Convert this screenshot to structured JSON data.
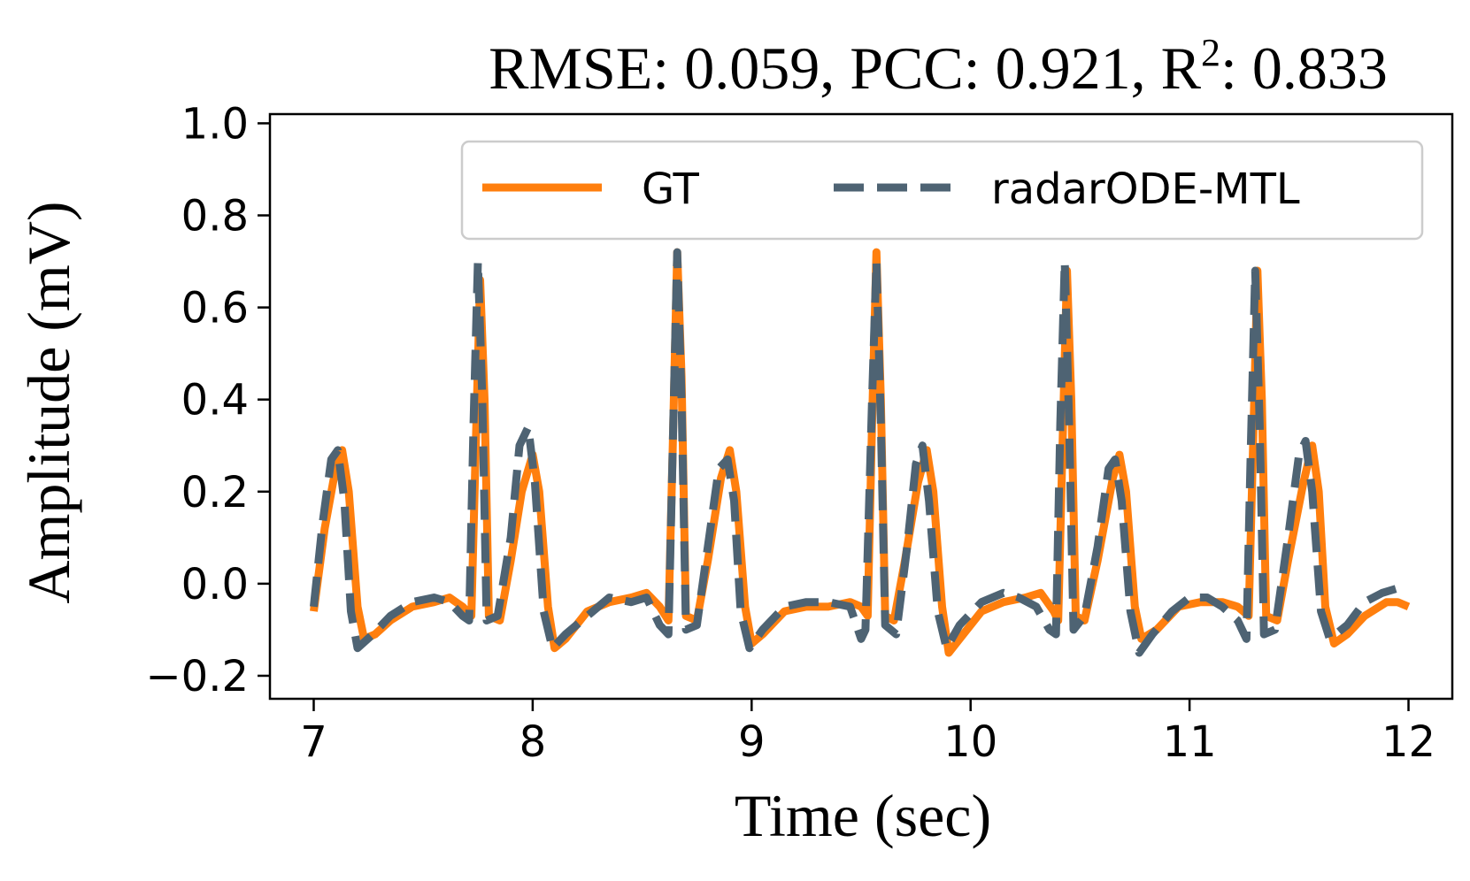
{
  "chart_data": {
    "type": "line",
    "title": "RMSE: 0.059, PCC: 0.921, R",
    "title_sup": "2",
    "title_tail": ": 0.833",
    "xlabel": "Time (sec)",
    "ylabel": "Amplitude (mV)",
    "xlim": [
      6.8,
      12.2
    ],
    "ylim": [
      -0.25,
      1.02
    ],
    "xticks": [
      7,
      8,
      9,
      10,
      11,
      12
    ],
    "xtick_labels": [
      "7",
      "8",
      "9",
      "10",
      "11",
      "12"
    ],
    "yticks": [
      -0.2,
      0.0,
      0.2,
      0.4,
      0.6,
      0.8,
      1.0
    ],
    "ytick_labels": [
      "−0.2",
      "0.0",
      "0.2",
      "0.4",
      "0.6",
      "0.8",
      "1.0"
    ],
    "grid": false,
    "legend": {
      "placement": "top-right",
      "columns": 2
    },
    "series": [
      {
        "name": "GT",
        "color": "#ff7f0e",
        "style": "solid",
        "points": [
          [
            7.0,
            -0.06
          ],
          [
            7.05,
            0.12
          ],
          [
            7.1,
            0.25
          ],
          [
            7.13,
            0.29
          ],
          [
            7.16,
            0.2
          ],
          [
            7.2,
            -0.05
          ],
          [
            7.23,
            -0.12
          ],
          [
            7.28,
            -0.11
          ],
          [
            7.35,
            -0.08
          ],
          [
            7.45,
            -0.05
          ],
          [
            7.55,
            -0.04
          ],
          [
            7.62,
            -0.03
          ],
          [
            7.68,
            -0.05
          ],
          [
            7.72,
            -0.07
          ],
          [
            7.74,
            0.3
          ],
          [
            7.76,
            0.66
          ],
          [
            7.78,
            0.4
          ],
          [
            7.8,
            -0.07
          ],
          [
            7.85,
            -0.08
          ],
          [
            7.9,
            0.05
          ],
          [
            7.95,
            0.2
          ],
          [
            8.0,
            0.28
          ],
          [
            8.03,
            0.2
          ],
          [
            8.07,
            -0.05
          ],
          [
            8.1,
            -0.14
          ],
          [
            8.15,
            -0.12
          ],
          [
            8.25,
            -0.06
          ],
          [
            8.35,
            -0.04
          ],
          [
            8.45,
            -0.03
          ],
          [
            8.52,
            -0.02
          ],
          [
            8.58,
            -0.05
          ],
          [
            8.62,
            -0.08
          ],
          [
            8.64,
            0.3
          ],
          [
            8.66,
            0.72
          ],
          [
            8.68,
            0.45
          ],
          [
            8.7,
            -0.07
          ],
          [
            8.75,
            -0.08
          ],
          [
            8.8,
            0.05
          ],
          [
            8.86,
            0.23
          ],
          [
            8.9,
            0.29
          ],
          [
            8.93,
            0.2
          ],
          [
            8.97,
            -0.05
          ],
          [
            9.0,
            -0.13
          ],
          [
            9.05,
            -0.11
          ],
          [
            9.15,
            -0.06
          ],
          [
            9.25,
            -0.05
          ],
          [
            9.35,
            -0.05
          ],
          [
            9.45,
            -0.04
          ],
          [
            9.5,
            -0.05
          ],
          [
            9.53,
            -0.07
          ],
          [
            9.55,
            0.35
          ],
          [
            9.57,
            0.72
          ],
          [
            9.59,
            0.4
          ],
          [
            9.61,
            -0.07
          ],
          [
            9.65,
            -0.08
          ],
          [
            9.7,
            0.05
          ],
          [
            9.76,
            0.22
          ],
          [
            9.8,
            0.29
          ],
          [
            9.83,
            0.2
          ],
          [
            9.87,
            -0.05
          ],
          [
            9.9,
            -0.15
          ],
          [
            9.95,
            -0.12
          ],
          [
            10.05,
            -0.06
          ],
          [
            10.15,
            -0.04
          ],
          [
            10.25,
            -0.03
          ],
          [
            10.32,
            -0.02
          ],
          [
            10.38,
            -0.06
          ],
          [
            10.4,
            -0.08
          ],
          [
            10.42,
            0.3
          ],
          [
            10.44,
            0.68
          ],
          [
            10.46,
            0.4
          ],
          [
            10.48,
            -0.07
          ],
          [
            10.52,
            -0.08
          ],
          [
            10.58,
            0.05
          ],
          [
            10.65,
            0.23
          ],
          [
            10.68,
            0.28
          ],
          [
            10.71,
            0.2
          ],
          [
            10.75,
            -0.05
          ],
          [
            10.78,
            -0.12
          ],
          [
            10.85,
            -0.1
          ],
          [
            10.95,
            -0.05
          ],
          [
            11.05,
            -0.04
          ],
          [
            11.15,
            -0.04
          ],
          [
            11.22,
            -0.05
          ],
          [
            11.27,
            -0.07
          ],
          [
            11.29,
            0.3
          ],
          [
            11.31,
            0.68
          ],
          [
            11.33,
            0.4
          ],
          [
            11.35,
            -0.07
          ],
          [
            11.4,
            -0.08
          ],
          [
            11.45,
            0.05
          ],
          [
            11.52,
            0.22
          ],
          [
            11.56,
            0.3
          ],
          [
            11.59,
            0.2
          ],
          [
            11.62,
            -0.05
          ],
          [
            11.66,
            -0.13
          ],
          [
            11.72,
            -0.11
          ],
          [
            11.8,
            -0.07
          ],
          [
            11.9,
            -0.04
          ],
          [
            11.95,
            -0.04
          ],
          [
            12.0,
            -0.05
          ]
        ]
      },
      {
        "name": "radarODE-MTL",
        "color": "#4e6373",
        "style": "dashed",
        "points": [
          [
            7.0,
            -0.05
          ],
          [
            7.04,
            0.13
          ],
          [
            7.08,
            0.27
          ],
          [
            7.11,
            0.29
          ],
          [
            7.14,
            0.18
          ],
          [
            7.17,
            -0.06
          ],
          [
            7.2,
            -0.14
          ],
          [
            7.27,
            -0.11
          ],
          [
            7.35,
            -0.07
          ],
          [
            7.45,
            -0.04
          ],
          [
            7.55,
            -0.03
          ],
          [
            7.62,
            -0.04
          ],
          [
            7.68,
            -0.07
          ],
          [
            7.71,
            -0.08
          ],
          [
            7.73,
            0.35
          ],
          [
            7.75,
            0.7
          ],
          [
            7.77,
            0.4
          ],
          [
            7.79,
            -0.08
          ],
          [
            7.84,
            -0.07
          ],
          [
            7.9,
            0.1
          ],
          [
            7.94,
            0.3
          ],
          [
            7.98,
            0.34
          ],
          [
            8.01,
            0.22
          ],
          [
            8.05,
            -0.06
          ],
          [
            8.09,
            -0.14
          ],
          [
            8.15,
            -0.11
          ],
          [
            8.25,
            -0.07
          ],
          [
            8.35,
            -0.03
          ],
          [
            8.45,
            -0.04
          ],
          [
            8.52,
            -0.03
          ],
          [
            8.58,
            -0.09
          ],
          [
            8.62,
            -0.11
          ],
          [
            8.64,
            0.3
          ],
          [
            8.66,
            0.72
          ],
          [
            8.68,
            0.4
          ],
          [
            8.7,
            -0.1
          ],
          [
            8.75,
            -0.09
          ],
          [
            8.8,
            0.08
          ],
          [
            8.85,
            0.25
          ],
          [
            8.89,
            0.27
          ],
          [
            8.92,
            0.18
          ],
          [
            8.95,
            -0.06
          ],
          [
            8.99,
            -0.14
          ],
          [
            9.05,
            -0.1
          ],
          [
            9.15,
            -0.05
          ],
          [
            9.25,
            -0.04
          ],
          [
            9.35,
            -0.04
          ],
          [
            9.45,
            -0.05
          ],
          [
            9.5,
            -0.12
          ],
          [
            9.52,
            -0.1
          ],
          [
            9.55,
            0.4
          ],
          [
            9.57,
            0.7
          ],
          [
            9.59,
            0.35
          ],
          [
            9.61,
            -0.09
          ],
          [
            9.66,
            -0.11
          ],
          [
            9.71,
            0.08
          ],
          [
            9.75,
            0.26
          ],
          [
            9.78,
            0.3
          ],
          [
            9.81,
            0.18
          ],
          [
            9.85,
            -0.06
          ],
          [
            9.89,
            -0.14
          ],
          [
            9.95,
            -0.09
          ],
          [
            10.05,
            -0.04
          ],
          [
            10.15,
            -0.02
          ],
          [
            10.22,
            -0.03
          ],
          [
            10.3,
            -0.05
          ],
          [
            10.36,
            -0.1
          ],
          [
            10.39,
            -0.11
          ],
          [
            10.41,
            0.35
          ],
          [
            10.43,
            0.7
          ],
          [
            10.45,
            0.35
          ],
          [
            10.47,
            -0.1
          ],
          [
            10.52,
            -0.07
          ],
          [
            10.58,
            0.08
          ],
          [
            10.63,
            0.25
          ],
          [
            10.66,
            0.27
          ],
          [
            10.69,
            0.18
          ],
          [
            10.73,
            -0.06
          ],
          [
            10.77,
            -0.15
          ],
          [
            10.83,
            -0.11
          ],
          [
            10.92,
            -0.06
          ],
          [
            11.0,
            -0.03
          ],
          [
            11.08,
            -0.03
          ],
          [
            11.15,
            -0.05
          ],
          [
            11.22,
            -0.08
          ],
          [
            11.26,
            -0.12
          ],
          [
            11.28,
            0.3
          ],
          [
            11.3,
            0.68
          ],
          [
            11.32,
            0.35
          ],
          [
            11.34,
            -0.11
          ],
          [
            11.39,
            -0.1
          ],
          [
            11.45,
            0.1
          ],
          [
            11.5,
            0.28
          ],
          [
            11.53,
            0.31
          ],
          [
            11.56,
            0.2
          ],
          [
            11.6,
            -0.06
          ],
          [
            11.64,
            -0.12
          ],
          [
            11.72,
            -0.09
          ],
          [
            11.8,
            -0.04
          ],
          [
            11.88,
            -0.02
          ],
          [
            11.95,
            -0.01
          ]
        ]
      }
    ]
  }
}
